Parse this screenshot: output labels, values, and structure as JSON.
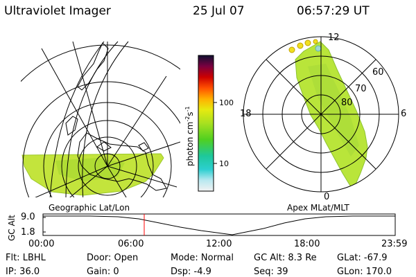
{
  "header": {
    "instrument": "Ultraviolet Imager",
    "date": "25 Jul 07",
    "time": "06:57:29 UT"
  },
  "left_panel": {
    "caption": "Geographic Lat/Lon"
  },
  "right_panel": {
    "caption": "Apex MLat/MLT",
    "mlt_labels": {
      "top": "12",
      "bottom": "0",
      "left": "18",
      "right": "6"
    },
    "lat_labels": [
      "60",
      "70",
      "80"
    ]
  },
  "colorbar": {
    "unit": "photon cm^-2 s^-1",
    "ticks": [
      "100",
      "10"
    ]
  },
  "altitude_plot": {
    "ylabel": "GC Alt",
    "y_ticks": [
      "9.0",
      "1.8"
    ],
    "x_ticks": [
      "00:00",
      "06:00",
      "12:00",
      "18:00",
      "23:59"
    ],
    "cursor_time": "06:57"
  },
  "footer": {
    "filter": "Flt: LBHL",
    "ip": "IP: 36.0",
    "door": "Door: Open",
    "gain": "Gain:  0",
    "mode": "Mode: Normal",
    "dsp": "Dsp:    -4.9",
    "gc_alt": "GC Alt: 8.3 Re",
    "seq": "Seq: 39",
    "glat": "GLat:  -67.9",
    "glon": "GLon: 170.0"
  },
  "colors": {
    "accent_cursor": "#ff0000",
    "aurora_fill": "#b9e53a",
    "grid": "#000000"
  }
}
